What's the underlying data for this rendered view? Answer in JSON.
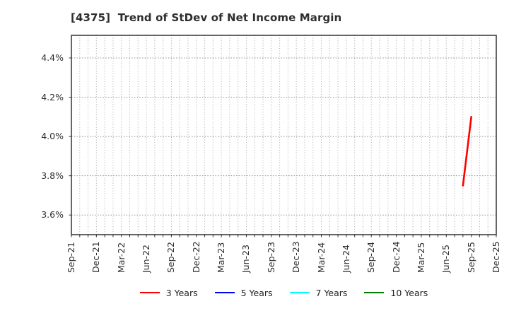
{
  "chart_data": {
    "type": "line",
    "title": "[4375]  Trend of StDev of Net Income Margin",
    "xlabel": "",
    "ylabel": "",
    "x_tick_labels": [
      "Sep-21",
      "Dec-21",
      "Mar-22",
      "Jun-22",
      "Sep-22",
      "Dec-22",
      "Mar-23",
      "Jun-23",
      "Sep-23",
      "Dec-23",
      "Mar-24",
      "Jun-24",
      "Sep-24",
      "Dec-24",
      "Mar-25",
      "Jun-25",
      "Sep-25",
      "Dec-25"
    ],
    "months_per_x_tick": 3,
    "months_total": 51,
    "y_ticks": [
      {
        "label": "4.4%",
        "value": 4.4
      },
      {
        "label": "4.2%",
        "value": 4.2
      },
      {
        "label": "4.0%",
        "value": 4.0
      },
      {
        "label": "3.8%",
        "value": 3.8
      },
      {
        "label": "3.6%",
        "value": 3.6
      }
    ],
    "ylim": [
      3.5,
      4.515
    ],
    "grid": {
      "on": true,
      "vertical_interval": "monthly",
      "style": "dotted"
    },
    "series": [
      {
        "name": "3 Years",
        "color": "#ff0000",
        "points": [
          {
            "x_label": "Aug-25",
            "month_index": 47,
            "value": 3.75
          },
          {
            "x_label": "Sep-25",
            "month_index": 48,
            "value": 4.1
          }
        ]
      },
      {
        "name": "5 Years",
        "color": "#0000ff",
        "points": []
      },
      {
        "name": "7 Years",
        "color": "#00ffff",
        "points": []
      },
      {
        "name": "10 Years",
        "color": "#008000",
        "points": []
      }
    ],
    "legend": {
      "position": "bottom-center",
      "entries": [
        {
          "label": "3 Years",
          "color": "#ff0000"
        },
        {
          "label": "5 Years",
          "color": "#0000ff"
        },
        {
          "label": "7 Years",
          "color": "#00ffff"
        },
        {
          "label": "10 Years",
          "color": "#008000"
        }
      ]
    },
    "colors": {
      "background": "#ffffff",
      "axis_border": "#333333",
      "grid_vertical": "#a9a9a9",
      "grid_horizontal": "#8f8f8f",
      "tick_text": "#2e2e2e",
      "title_text": "#2e2e2e"
    }
  }
}
